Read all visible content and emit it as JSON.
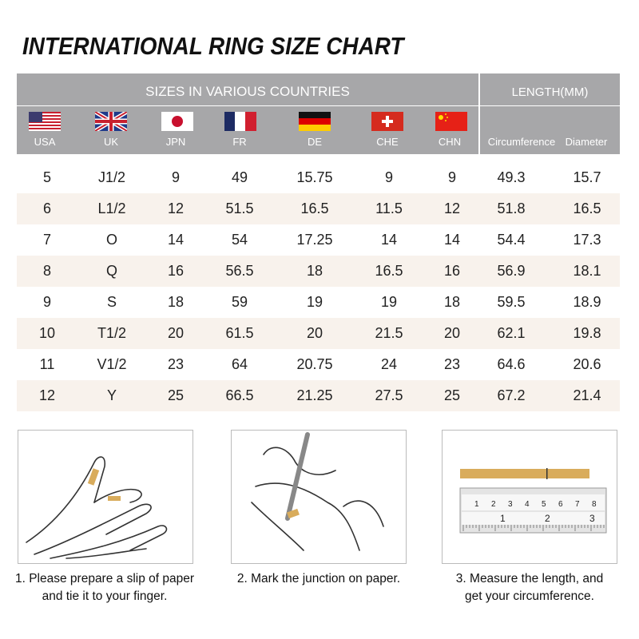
{
  "title": "INTERNATIONAL RING SIZE CHART",
  "header": {
    "sizes_label": "SIZES IN VARIOUS COUNTRIES",
    "length_label": "LENGTH(MM)",
    "countries": [
      {
        "code": "USA",
        "flag": "usa-flag"
      },
      {
        "code": "UK",
        "flag": "uk-flag"
      },
      {
        "code": "JPN",
        "flag": "japan-flag"
      },
      {
        "code": "FR",
        "flag": "france-flag"
      },
      {
        "code": "DE",
        "flag": "germany-flag"
      },
      {
        "code": "CHE",
        "flag": "switzerland-flag"
      },
      {
        "code": "CHN",
        "flag": "china-flag"
      }
    ],
    "length_cols": [
      "Circumference",
      "Diameter"
    ]
  },
  "rows": [
    [
      "5",
      "J1/2",
      "9",
      "49",
      "15.75",
      "9",
      "9",
      "49.3",
      "15.7"
    ],
    [
      "6",
      "L1/2",
      "12",
      "51.5",
      "16.5",
      "11.5",
      "12",
      "51.8",
      "16.5"
    ],
    [
      "7",
      "O",
      "14",
      "54",
      "17.25",
      "14",
      "14",
      "54.4",
      "17.3"
    ],
    [
      "8",
      "Q",
      "16",
      "56.5",
      "18",
      "16.5",
      "16",
      "56.9",
      "18.1"
    ],
    [
      "9",
      "S",
      "18",
      "59",
      "19",
      "19",
      "18",
      "59.5",
      "18.9"
    ],
    [
      "10",
      "T1/2",
      "20",
      "61.5",
      "20",
      "21.5",
      "20",
      "62.1",
      "19.8"
    ],
    [
      "11",
      "V1/2",
      "23",
      "64",
      "20.75",
      "24",
      "23",
      "64.6",
      "20.6"
    ],
    [
      "12",
      "Y",
      "25",
      "66.5",
      "21.25",
      "27.5",
      "25",
      "67.2",
      "21.4"
    ]
  ],
  "steps": [
    {
      "line1": "1. Please prepare a slip of paper",
      "line2": "and tie it to your finger."
    },
    {
      "line1": "2. Mark the junction on paper.",
      "line2": ""
    },
    {
      "line1": "3. Measure the length, and",
      "line2": "get your circumference."
    }
  ],
  "ruler": {
    "top_numbers": [
      "1",
      "2",
      "3",
      "4",
      "5",
      "6",
      "7",
      "8"
    ],
    "bottom_numbers": [
      "1",
      "2",
      "3"
    ]
  },
  "colors": {
    "header": "#a7a7a9",
    "alt_row": "#f8f2ec",
    "paper": "#d9ac5c"
  }
}
